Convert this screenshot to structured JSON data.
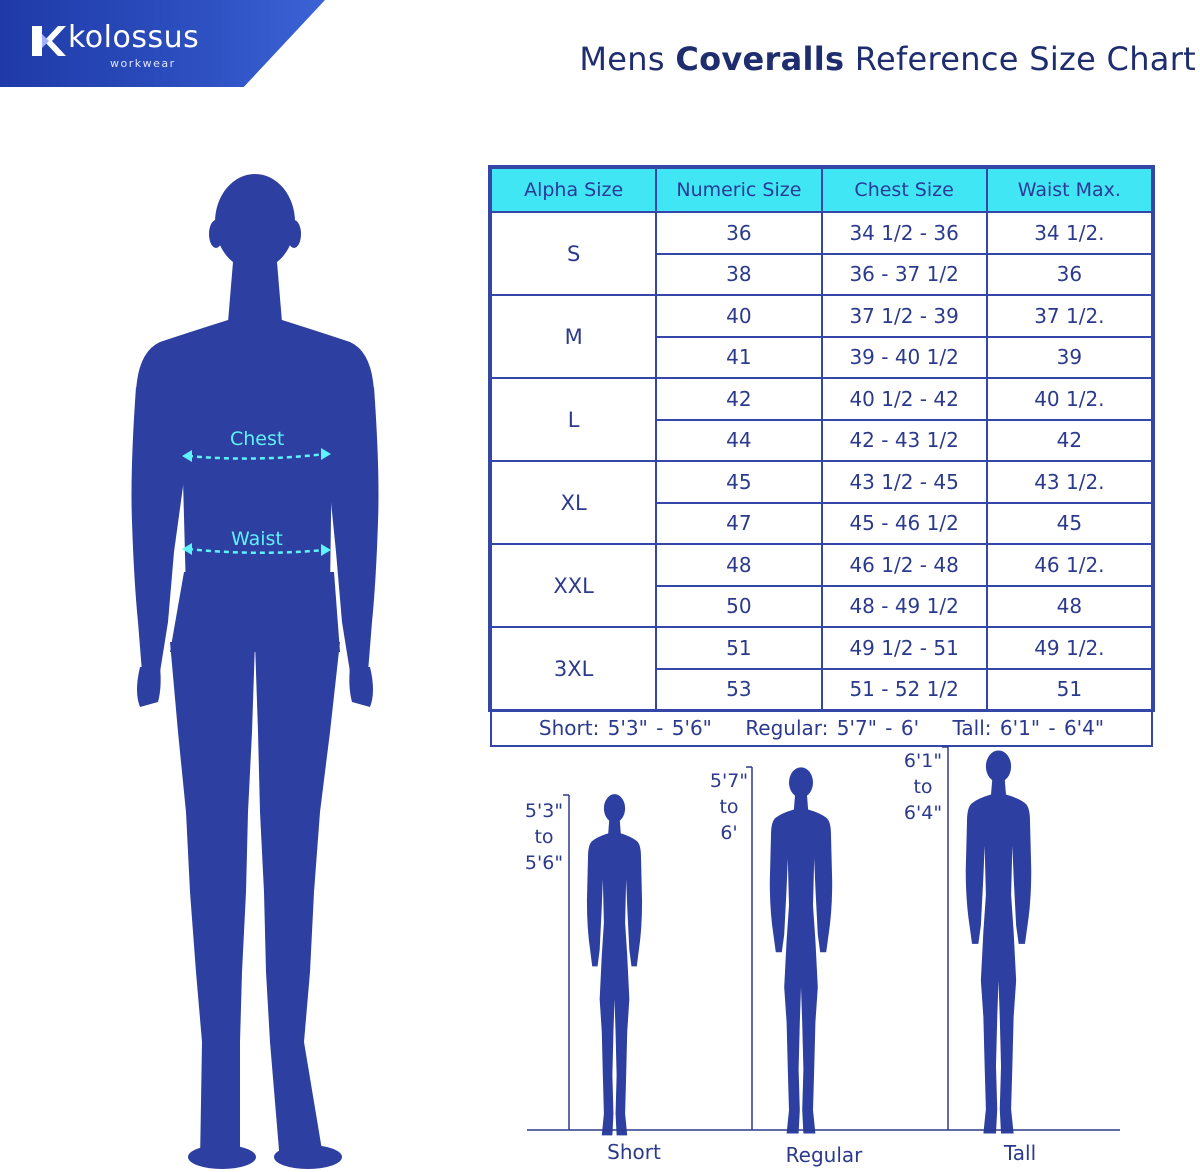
{
  "brand": {
    "name": "kolossus",
    "tagline": "workwear"
  },
  "title": {
    "prefix": "Mens",
    "emphasis": "Coveralls",
    "suffix": "Reference Size Chart"
  },
  "colors": {
    "brand_blue": "#2a3ea8",
    "figure_blue": "#2d3fa0",
    "header_cyan": "#40e6f3",
    "measure_cyan": "#5ff2ff"
  },
  "size_table": {
    "headers": [
      "Alpha Size",
      "Numeric Size",
      "Chest Size",
      "Waist Max."
    ],
    "groups": [
      {
        "alpha": "S",
        "rows": [
          {
            "numeric": "36",
            "chest": "34 1/2 - 36",
            "waist": "34 1/2."
          },
          {
            "numeric": "38",
            "chest": "36 - 37 1/2",
            "waist": "36"
          }
        ]
      },
      {
        "alpha": "M",
        "rows": [
          {
            "numeric": "40",
            "chest": "37 1/2 - 39",
            "waist": "37 1/2."
          },
          {
            "numeric": "41",
            "chest": "39 - 40 1/2",
            "waist": "39"
          }
        ]
      },
      {
        "alpha": "L",
        "rows": [
          {
            "numeric": "42",
            "chest": "40 1/2 - 42",
            "waist": "40 1/2."
          },
          {
            "numeric": "44",
            "chest": "42 - 43 1/2",
            "waist": "42"
          }
        ]
      },
      {
        "alpha": "XL",
        "rows": [
          {
            "numeric": "45",
            "chest": "43 1/2 - 45",
            "waist": "43 1/2."
          },
          {
            "numeric": "47",
            "chest": "45 - 46 1/2",
            "waist": "45"
          }
        ]
      },
      {
        "alpha": "XXL",
        "rows": [
          {
            "numeric": "48",
            "chest": "46 1/2 - 48",
            "waist": "46 1/2."
          },
          {
            "numeric": "50",
            "chest": "48 - 49 1/2",
            "waist": "48"
          }
        ]
      },
      {
        "alpha": "3XL",
        "rows": [
          {
            "numeric": "51",
            "chest": "49 1/2 - 51",
            "waist": "49 1/2."
          },
          {
            "numeric": "53",
            "chest": "51 - 52 1/2",
            "waist": "51"
          }
        ]
      }
    ],
    "height_note": "Short: 5'3\" - 5'6\"    Regular: 5'7\" - 6'    Tall: 6'1\" - 6'4\""
  },
  "measurements": {
    "chest_label": "Chest",
    "waist_label": "Waist"
  },
  "height_figures": [
    {
      "caption": "Short",
      "line1": "5'3\"",
      "line2": "to",
      "line3": "5'6\""
    },
    {
      "caption": "Regular",
      "line1": "5'7\"",
      "line2": "to",
      "line3": "6'"
    },
    {
      "caption": "Tall",
      "line1": "6'1\"",
      "line2": "to",
      "line3": "6'4\""
    }
  ]
}
